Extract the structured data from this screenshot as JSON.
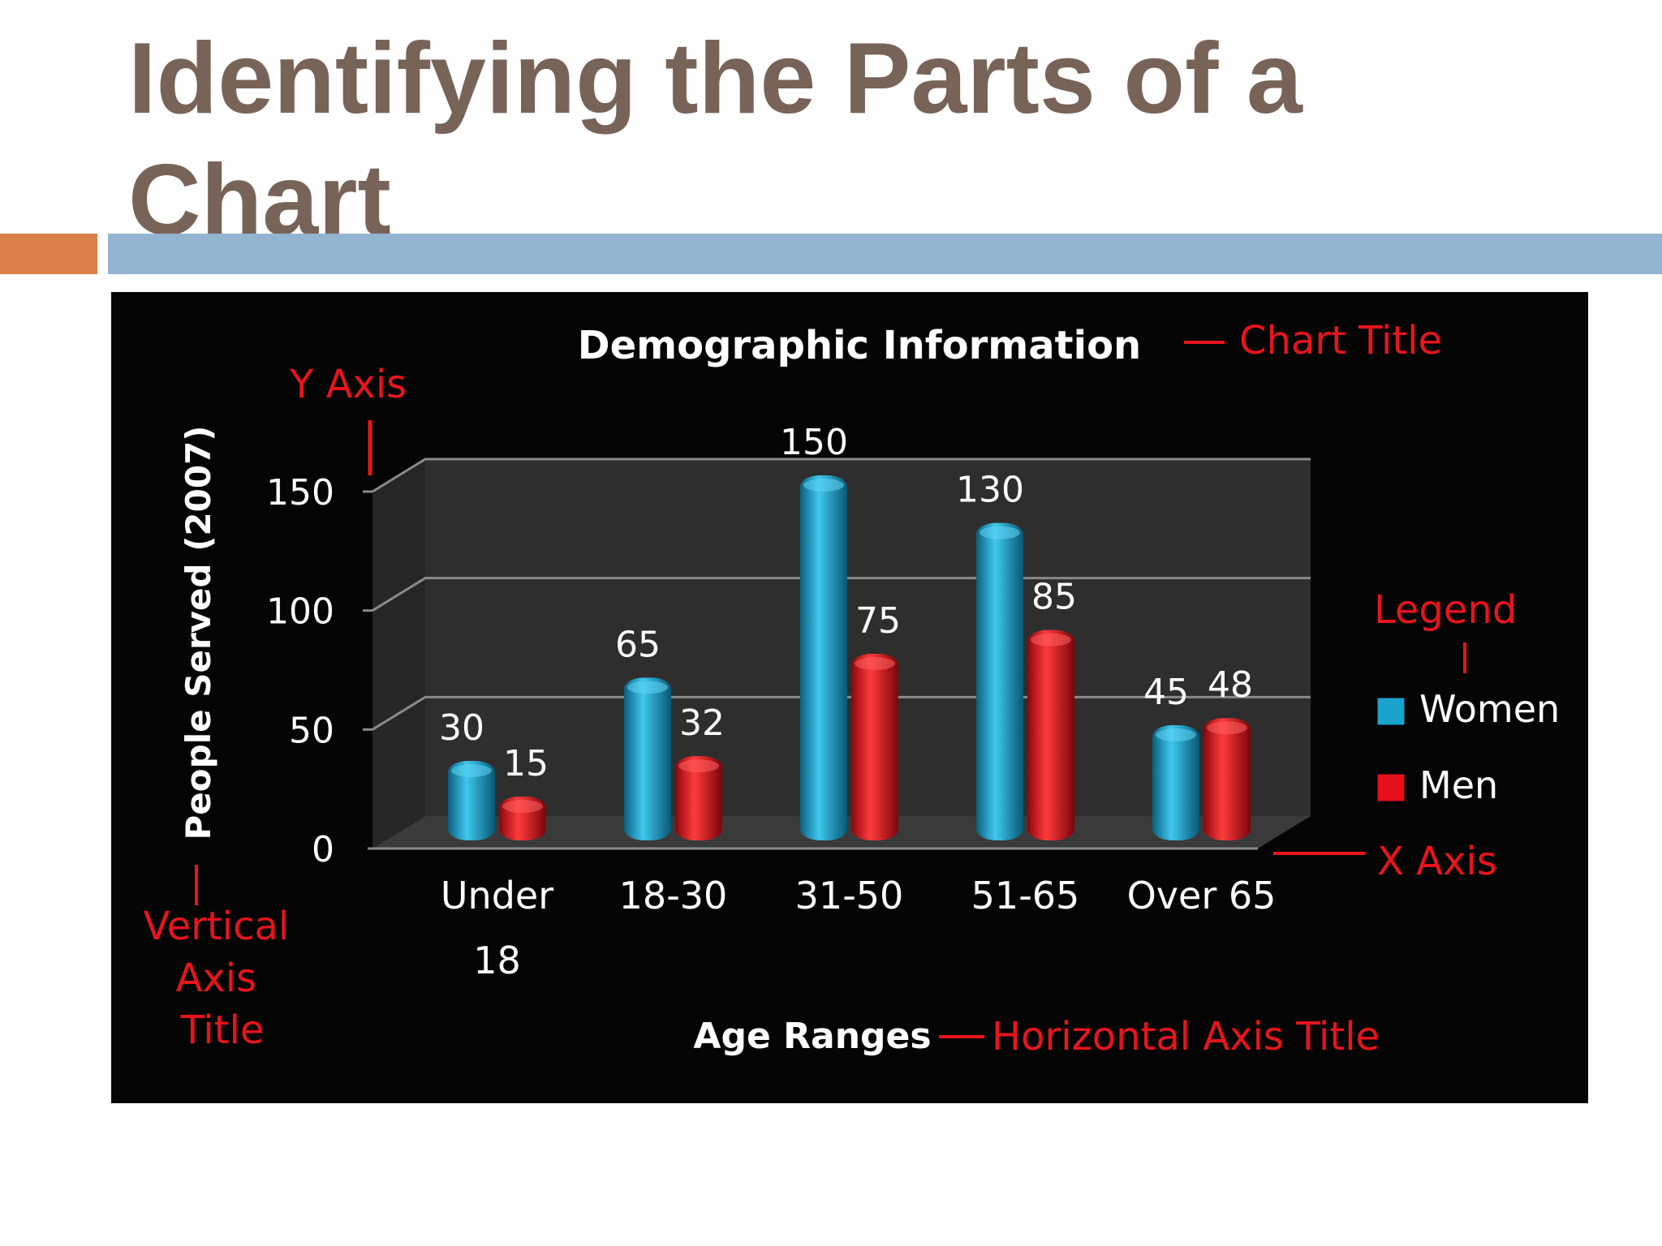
{
  "slide": {
    "title_line1": "Identifying the Parts of a",
    "title_line2": "Chart",
    "title_color": "#786358",
    "accent_orange": "#d9804b",
    "accent_blue": "#93b4d0"
  },
  "annotations": {
    "chart_title": "Chart Title",
    "y_axis": "Y Axis",
    "legend": "Legend",
    "x_axis": "X Axis",
    "vertical_axis_title": [
      "Vertical",
      "Axis",
      "Title"
    ],
    "horizontal_axis_title": "Horizontal Axis Title",
    "color": "#e8141c"
  },
  "chart_data": {
    "type": "bar",
    "style": "3d-cylinder",
    "title": "Demographic Information",
    "xlabel": "Age Ranges",
    "ylabel": "People Served (2007)",
    "categories": [
      [
        "Under",
        "18"
      ],
      [
        "18-30"
      ],
      [
        "31-50"
      ],
      [
        "51-65"
      ],
      [
        "Over 65"
      ]
    ],
    "yticks": [
      0,
      50,
      100,
      150
    ],
    "ylim": [
      0,
      150
    ],
    "grid": true,
    "legend_position": "right",
    "background": "#050505",
    "series": [
      {
        "name": "Women",
        "values": [
          30,
          65,
          150,
          130,
          45
        ],
        "color": "#1aa3cc"
      },
      {
        "name": "Men",
        "values": [
          15,
          32,
          75,
          85,
          48
        ],
        "color": "#e5101a"
      }
    ]
  }
}
